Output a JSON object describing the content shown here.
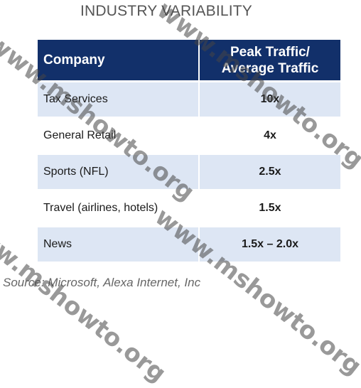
{
  "title": "INDUSTRY VARIABILITY",
  "table": {
    "headers": {
      "company": "Company",
      "ratio_line1": "Peak Traffic/",
      "ratio_line2": "Average Traffic"
    },
    "rows": [
      {
        "company": "Tax Services",
        "ratio": "10x"
      },
      {
        "company": "General Retail",
        "ratio": "4x"
      },
      {
        "company": "Sports (NFL)",
        "ratio": "2.5x"
      },
      {
        "company": "Travel (airlines, hotels)",
        "ratio": "1.5x"
      },
      {
        "company": "News",
        "ratio": "1.5x – 2.0x"
      }
    ]
  },
  "source": "Source: Microsoft, Alexa Internet, Inc",
  "watermarks": [
    "www.mshowto.org",
    "www.mshowto.org",
    "www.mshowto.org",
    "www.mshowto.org"
  ],
  "colors": {
    "header_bg": "#12306a",
    "shaded_row_bg": "#dde6f4"
  }
}
